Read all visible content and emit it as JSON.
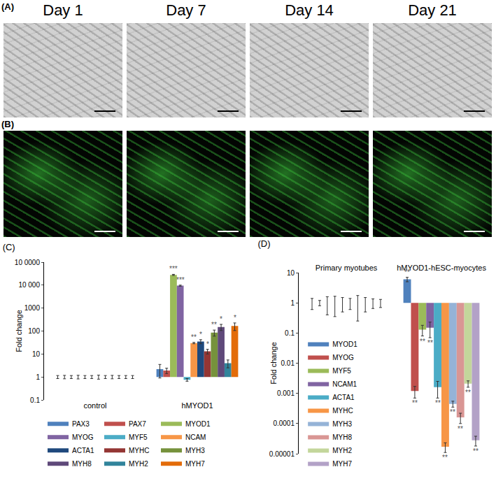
{
  "figure": {
    "panel_a": {
      "label": "(A)",
      "columns": [
        "Day 1",
        "Day 7",
        "Day 14",
        "Day 21"
      ]
    },
    "panel_b": {
      "label": "(B)"
    }
  },
  "chart_data": [
    {
      "type": "bar",
      "title": "(C)",
      "y_label": "Fold change",
      "log": "y",
      "grid": false,
      "legend": "bottom",
      "categories": [
        "control",
        "hMYOD1"
      ],
      "base": 1,
      "ylim": [
        0.1,
        100000
      ],
      "yticks": [
        0.1,
        1,
        10,
        100,
        1000,
        {
          "value": 10000,
          "label": "10 000"
        },
        {
          "value": 100000,
          "label": "10 0000"
        }
      ],
      "series": [
        {
          "name": "PAX3",
          "color": "#4f81bd",
          "values": [
            1,
            2.2
          ],
          "error": [
            0.15,
            1.3
          ],
          "significance": [
            null,
            null
          ]
        },
        {
          "name": "PAX7",
          "color": "#c0504d",
          "values": [
            1,
            1.9
          ],
          "error": [
            0.17,
            0.5
          ],
          "significance": [
            null,
            null
          ]
        },
        {
          "name": "MYOD1",
          "color": "#9bbb59",
          "values": [
            1,
            28000
          ],
          "error": [
            0.15,
            1500
          ],
          "significance": [
            null,
            "***"
          ]
        },
        {
          "name": "MYOG",
          "color": "#8064a2",
          "values": [
            1,
            9500
          ],
          "error": [
            0.18,
            500
          ],
          "significance": [
            null,
            "***"
          ]
        },
        {
          "name": "MYF5",
          "color": "#4bacc6",
          "values": [
            1,
            0.75
          ],
          "error": [
            0.15,
            0.1
          ],
          "significance": [
            null,
            null
          ]
        },
        {
          "name": "NCAM",
          "color": "#f79646",
          "values": [
            1,
            30
          ],
          "error": [
            0.15,
            2
          ],
          "significance": [
            null,
            "**"
          ]
        },
        {
          "name": "ACTA1",
          "color": "#1f497d",
          "values": [
            1,
            35
          ],
          "error": [
            0.2,
            7
          ],
          "significance": [
            null,
            "*"
          ]
        },
        {
          "name": "MYHC",
          "color": "#943634",
          "values": [
            1,
            13
          ],
          "error": [
            0.15,
            3
          ],
          "significance": [
            null,
            "*"
          ]
        },
        {
          "name": "MYH3",
          "color": "#76923c",
          "values": [
            1,
            85
          ],
          "error": [
            0.17,
            25
          ],
          "significance": [
            null,
            "**"
          ]
        },
        {
          "name": "MYH8",
          "color": "#5f497a",
          "values": [
            1,
            150
          ],
          "error": [
            0.15,
            45
          ],
          "significance": [
            null,
            "*"
          ]
        },
        {
          "name": "MYH2",
          "color": "#31849b",
          "values": [
            1,
            4
          ],
          "error": [
            0.15,
            1.5
          ],
          "significance": [
            null,
            null
          ]
        },
        {
          "name": "MYH7",
          "color": "#e36c09",
          "values": [
            1,
            165
          ],
          "error": [
            0.15,
            60
          ],
          "significance": [
            null,
            "*"
          ]
        }
      ]
    },
    {
      "type": "bar",
      "title": "(D)",
      "y_label": "Fold change",
      "log": "y",
      "grid": false,
      "legend": "left",
      "categories": [
        "Primary myotubes",
        "hMYOD1-hESC-myocytes"
      ],
      "base": 1,
      "ylim": [
        1e-05,
        10
      ],
      "yticks": [
        1e-05,
        0.0001,
        0.001,
        0.01,
        0.1,
        1,
        10
      ],
      "series": [
        {
          "name": "MYOD1",
          "color": "#4f81bd",
          "values": [
            1,
            6
          ],
          "error": [
            0.4,
            1
          ],
          "significance": [
            null,
            "**"
          ]
        },
        {
          "name": "MYOG",
          "color": "#c0504d",
          "values": [
            1,
            0.0012
          ],
          "error": [
            0.2,
            0.0005
          ],
          "significance": [
            null,
            "**"
          ]
        },
        {
          "name": "MYF5",
          "color": "#9bbb59",
          "values": [
            1,
            0.13
          ],
          "error": [
            0.6,
            0.05
          ],
          "significance": [
            null,
            "**"
          ]
        },
        {
          "name": "NCAM1",
          "color": "#8064a2",
          "values": [
            1,
            0.15
          ],
          "error": [
            0.65,
            0.08
          ],
          "significance": [
            null,
            "**"
          ]
        },
        {
          "name": "ACTA1",
          "color": "#4bacc6",
          "values": [
            1,
            0.0016
          ],
          "error": [
            0.5,
            0.0009
          ],
          "significance": [
            null,
            "**"
          ]
        },
        {
          "name": "MYHC",
          "color": "#f79646",
          "values": [
            1,
            1.7e-05
          ],
          "error": [
            0.4,
            6e-06
          ],
          "significance": [
            null,
            "**"
          ]
        },
        {
          "name": "MYH3",
          "color": "#95b3d7",
          "values": [
            1,
            0.00045
          ],
          "error": [
            0.75,
            0.0001
          ],
          "significance": [
            null,
            "**"
          ]
        },
        {
          "name": "MYH8",
          "color": "#d99694",
          "values": [
            1,
            0.00016
          ],
          "error": [
            0.5,
            6e-05
          ],
          "significance": [
            null,
            "**"
          ]
        },
        {
          "name": "MYH2",
          "color": "#c3d69b",
          "values": [
            1,
            0.0021
          ],
          "error": [
            0.35,
            0.0005
          ],
          "significance": [
            null,
            "**"
          ]
        },
        {
          "name": "MYH7",
          "color": "#b3a2c7",
          "values": [
            1,
            2.8e-05
          ],
          "error": [
            0.3,
            1e-05
          ],
          "significance": [
            null,
            "**"
          ]
        }
      ]
    }
  ]
}
